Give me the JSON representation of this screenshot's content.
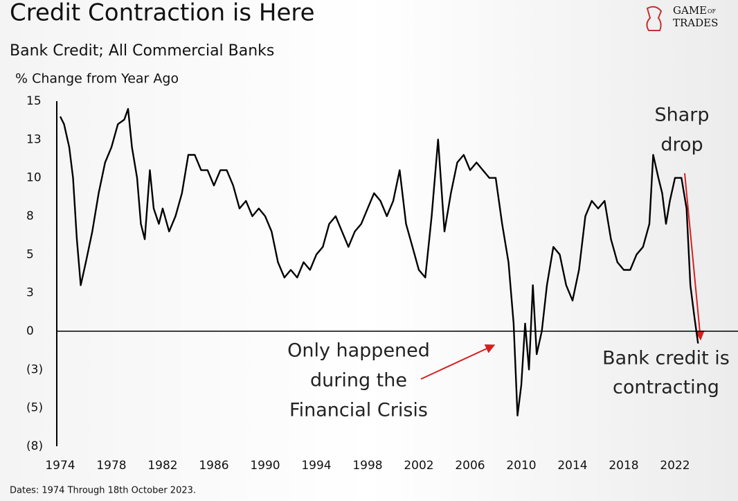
{
  "chart_data": {
    "type": "line",
    "title": "Credit Contraction is Here",
    "subtitle": "Bank Credit; All Commercial Banks",
    "y_label": "% Change from Year Ago",
    "footnote": "Dates: 1974 Through 18th October 2023.",
    "logo": [
      "GAME",
      "OF",
      "TRADES"
    ],
    "annotations": [
      {
        "lines": [
          "Sharp",
          "drop"
        ]
      },
      {
        "lines": [
          "Only happened",
          "during the",
          "Financial Crisis"
        ]
      },
      {
        "lines": [
          "Bank credit is",
          "contracting"
        ]
      }
    ],
    "color": "#000000",
    "xlim": [
      1974,
      2024
    ],
    "xticks": [
      1974,
      1978,
      1982,
      1986,
      1990,
      1994,
      1998,
      2002,
      2006,
      2010,
      2014,
      2018,
      2022
    ],
    "ylim": [
      -7.5,
      15
    ],
    "yticks": [
      15,
      {
        "value": 12.5,
        "label": "13"
      },
      10,
      {
        "value": 7.5,
        "label": "8"
      },
      5,
      {
        "value": 2.5,
        "label": "3"
      },
      0,
      {
        "value": -2.5,
        "label": "(3)"
      },
      {
        "value": -5,
        "label": "(5)"
      },
      {
        "value": -7.5,
        "label": "(8)"
      }
    ],
    "x": [
      1974.0,
      1974.3,
      1974.7,
      1975.0,
      1975.3,
      1975.6,
      1976.0,
      1976.5,
      1977.0,
      1977.5,
      1978.0,
      1978.5,
      1979.0,
      1979.3,
      1979.6,
      1980.0,
      1980.3,
      1980.6,
      1981.0,
      1981.3,
      1981.7,
      1982.0,
      1982.5,
      1983.0,
      1983.5,
      1984.0,
      1984.5,
      1985.0,
      1985.5,
      1986.0,
      1986.5,
      1987.0,
      1987.5,
      1988.0,
      1988.5,
      1989.0,
      1989.5,
      1990.0,
      1990.5,
      1991.0,
      1991.5,
      1992.0,
      1992.5,
      1993.0,
      1993.5,
      1994.0,
      1994.5,
      1995.0,
      1995.5,
      1996.0,
      1996.5,
      1997.0,
      1997.5,
      1998.0,
      1998.5,
      1999.0,
      1999.5,
      2000.0,
      2000.5,
      2001.0,
      2001.5,
      2002.0,
      2002.5,
      2003.0,
      2003.5,
      2004.0,
      2004.5,
      2005.0,
      2005.5,
      2006.0,
      2006.5,
      2007.0,
      2007.5,
      2008.0,
      2008.5,
      2009.0,
      2009.4,
      2009.7,
      2010.0,
      2010.3,
      2010.6,
      2010.9,
      2011.2,
      2011.6,
      2012.0,
      2012.5,
      2013.0,
      2013.5,
      2014.0,
      2014.5,
      2015.0,
      2015.5,
      2016.0,
      2016.5,
      2017.0,
      2017.5,
      2018.0,
      2018.5,
      2019.0,
      2019.5,
      2020.0,
      2020.3,
      2020.7,
      2021.0,
      2021.3,
      2021.6,
      2022.0,
      2022.5,
      2022.9,
      2023.2,
      2023.5,
      2023.8
    ],
    "values": [
      14,
      13.5,
      12,
      10,
      6,
      3,
      4.5,
      6.5,
      9,
      11,
      12,
      13.5,
      13.8,
      14.5,
      12,
      10,
      7,
      6,
      10.5,
      8,
      7,
      8,
      6.5,
      7.5,
      9,
      11.5,
      11.5,
      10.5,
      10.5,
      9.5,
      10.5,
      10.5,
      9.5,
      8,
      8.5,
      7.5,
      8,
      7.5,
      6.5,
      4.5,
      3.5,
      4,
      3.5,
      4.5,
      4,
      5,
      5.5,
      7,
      7.5,
      6.5,
      5.5,
      6.5,
      7,
      8,
      9,
      8.5,
      7.5,
      8.5,
      10.5,
      7,
      5.5,
      4,
      3.5,
      7.5,
      12.5,
      6.5,
      9,
      11,
      11.5,
      10.5,
      11,
      10.5,
      10,
      10,
      7,
      4.5,
      0.5,
      -5.5,
      -3.5,
      0.5,
      -2.5,
      3,
      -1.5,
      0,
      3,
      5.5,
      5,
      3,
      2,
      4,
      7.5,
      8.5,
      8,
      8.5,
      6,
      4.5,
      4,
      4,
      5,
      5.5,
      7,
      11.5,
      10,
      9,
      7,
      8.5,
      10,
      10,
      8,
      3,
      1,
      -0.8
    ]
  }
}
